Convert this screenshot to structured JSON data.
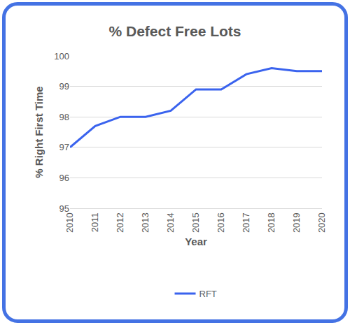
{
  "chart_data": {
    "type": "line",
    "title": "% Defect Free Lots",
    "x_label": "Year",
    "y_label": "% Right First Time",
    "categories": [
      "2010",
      "2011",
      "2012",
      "2013",
      "2014",
      "2015",
      "2016",
      "2017",
      "2018",
      "2019",
      "2020"
    ],
    "series": [
      {
        "name": "RFT",
        "color": "#3a63ee",
        "values": [
          97.0,
          97.7,
          98.0,
          98.0,
          98.2,
          98.9,
          98.9,
          99.4,
          99.6,
          99.5,
          99.5
        ]
      }
    ],
    "ylim": [
      95,
      100
    ],
    "yticks": [
      95,
      96,
      97,
      98,
      99,
      100
    ],
    "grid": true,
    "legend": "bottom"
  }
}
